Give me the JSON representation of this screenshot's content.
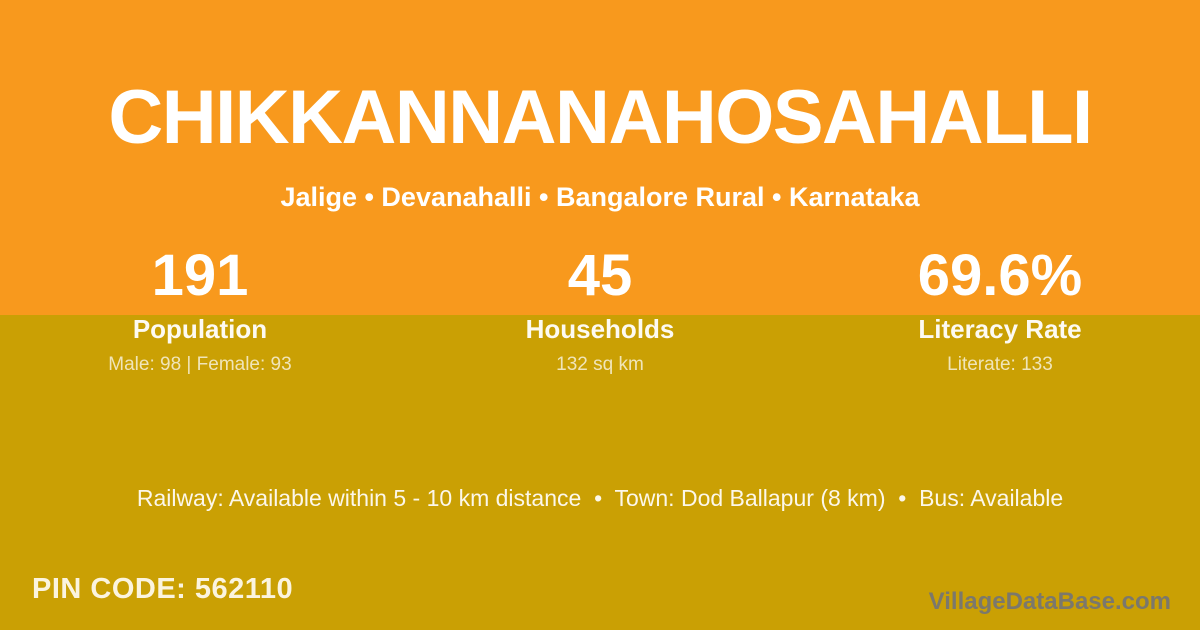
{
  "hero": {
    "title": "CHIKKANNANAHOSAHALLI",
    "breadcrumb": "Jalige • Devanahalli • Bangalore Rural • Karnataka"
  },
  "stats": [
    {
      "value": "191",
      "label": "Population",
      "detail": "Male: 98 | Female: 93"
    },
    {
      "value": "45",
      "label": "Households",
      "detail": "132 sq km"
    },
    {
      "value": "69.6%",
      "label": "Literacy Rate",
      "detail": "Literate: 133"
    }
  ],
  "transport": {
    "line": "Railway: Available within 5 - 10 km distance  •  Town: Dod Ballapur (8 km)  •  Bus: Available"
  },
  "footer": {
    "pin_code": "PIN CODE: 562110",
    "watermark": "VillageDataBase.com"
  },
  "colors": {
    "hero_orange": "#F8991D",
    "body_gold": "#CAA004",
    "text_white": "#FFFFFF",
    "text_cream": "rgba(255,255,255,0.72)",
    "watermark_gray": "#7B786C"
  }
}
